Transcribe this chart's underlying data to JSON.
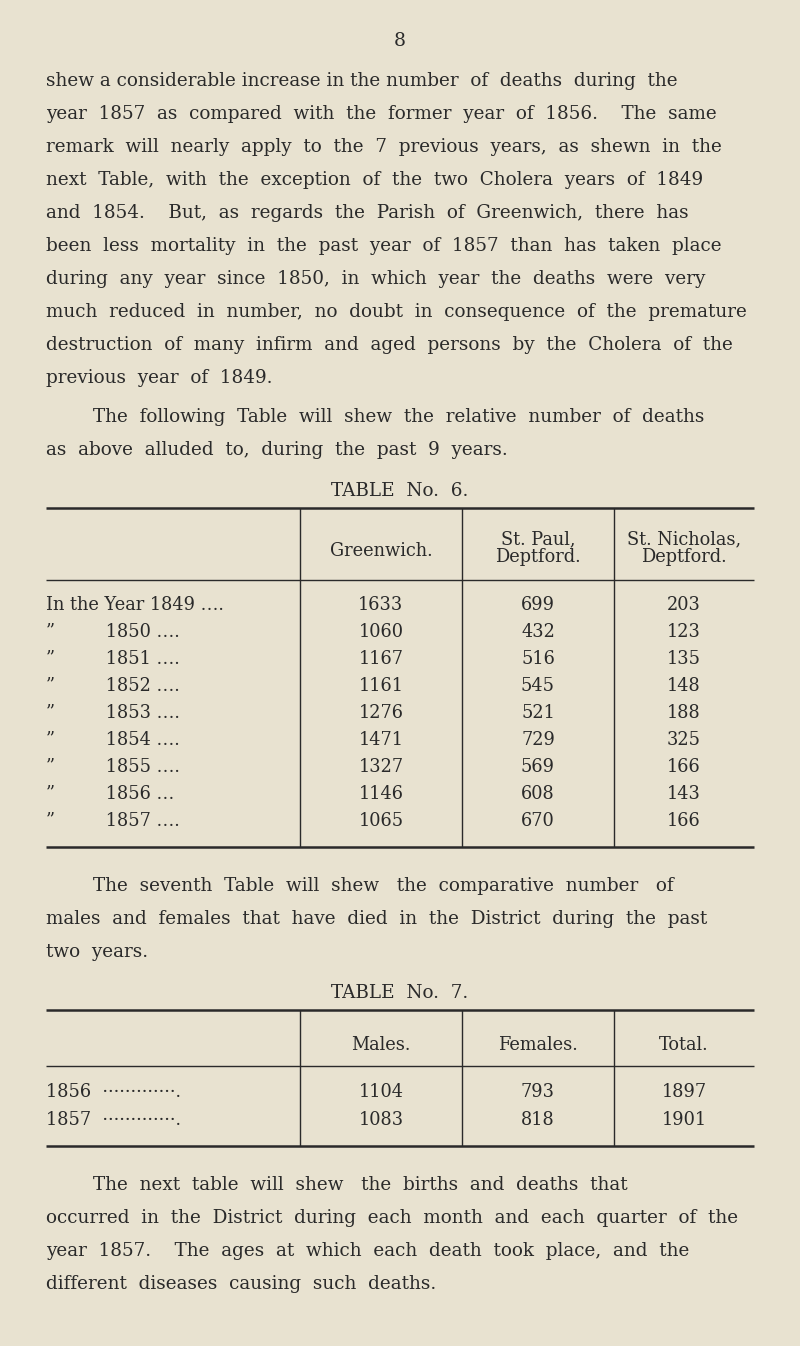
{
  "bg_color": "#e8e2d0",
  "text_color": "#2a2a2a",
  "page_number": "8",
  "para1_lines": [
    "shew a considerable increase in the number  of  deaths  during  the",
    "year  1857  as  compared  with  the  former  year  of  1856.    The  same",
    "remark  will  nearly  apply  to  the  7  previous  years,  as  shewn  in  the",
    "next  Table,  with  the  exception  of  the  two  Cholera  years  of  1849",
    "and  1854.    But,  as  regards  the  Parish  of  Greenwich,  there  has",
    "been  less  mortality  in  the  past  year  of  1857  than  has  taken  place",
    "during  any  year  since  1850,  in  which  year  the  deaths  were  very",
    "much  reduced  in  number,  no  doubt  in  consequence  of  the  premature",
    "destruction  of  many  infirm  and  aged  persons  by  the  Cholera  of  the",
    "previous  year  of  1849."
  ],
  "para2_lines": [
    "        The  following  Table  will  shew  the  relative  number  of  deaths",
    "as  above  alluded  to,  during  the  past  9  years."
  ],
  "table6_title": "TABLE  No.  6.",
  "table6_col1_header": "Greenwich.",
  "table6_col2_header_l1": "St. Paul,",
  "table6_col2_header_l2": "Deptford.",
  "table6_col3_header_l1": "St. Nicholas,",
  "table6_col3_header_l2": "Deptford.",
  "table6_row_labels": [
    "In the Year 1849 ….",
    "”         1850 ….",
    "”         1851 ….",
    "”         1852 ….",
    "”         1853 ….",
    "”         1854 ….",
    "”         1855 ….",
    "”         1856 …",
    "”         1857 …."
  ],
  "table6_data": [
    [
      1633,
      699,
      203
    ],
    [
      1060,
      432,
      123
    ],
    [
      1167,
      516,
      135
    ],
    [
      1161,
      545,
      148
    ],
    [
      1276,
      521,
      188
    ],
    [
      1471,
      729,
      325
    ],
    [
      1327,
      569,
      166
    ],
    [
      1146,
      608,
      143
    ],
    [
      1065,
      670,
      166
    ]
  ],
  "para3_lines": [
    "        The  seventh  Table  will  shew   the  comparative  number   of",
    "males  and  females  that  have  died  in  the  District  during  the  past",
    "two  years."
  ],
  "table7_title": "TABLE  No.  7.",
  "table7_col1_header": "Males.",
  "table7_col2_header": "Females.",
  "table7_col3_header": "Total.",
  "table7_row_labels": [
    "1856  ·············.",
    "1857  ·············."
  ],
  "table7_data": [
    [
      1104,
      793,
      1897
    ],
    [
      1083,
      818,
      1901
    ]
  ],
  "para4_lines": [
    "        The  next  table  will  shew   the  births  and  deaths  that",
    "occurred  in  the  District  during  each  month  and  each  quarter  of  the",
    "year  1857.    The  ages  at  which  each  death  took  place,  and  the",
    "different  diseases  causing  such  deaths."
  ]
}
